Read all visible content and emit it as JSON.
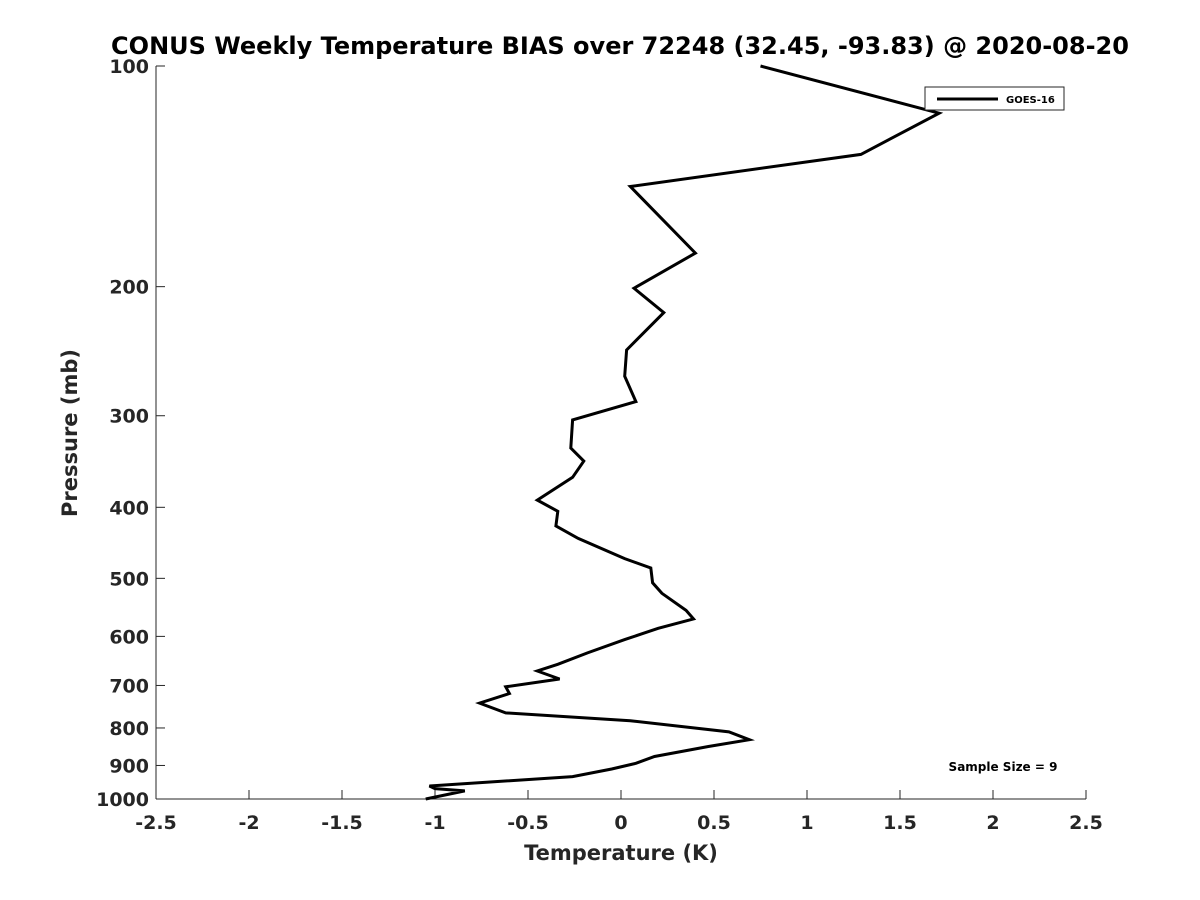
{
  "chart_data": {
    "type": "line",
    "title": "CONUS Weekly Temperature BIAS over 72248 (32.45, -93.83) @ 2020-08-20",
    "xlabel": "Temperature (K)",
    "ylabel": "Pressure (mb)",
    "xlim": [
      -2.5,
      2.5
    ],
    "ylim": [
      1000,
      100
    ],
    "y_scale": "log",
    "y_reversed": true,
    "x_ticks": [
      "-2.5",
      "-2",
      "-1.5",
      "-1",
      "-0.5",
      "0",
      "0.5",
      "1",
      "1.5",
      "2",
      "2.5"
    ],
    "x_tick_values": [
      -2.5,
      -2,
      -1.5,
      -1,
      -0.5,
      0,
      0.5,
      1,
      1.5,
      2,
      2.5
    ],
    "y_ticks": [
      "100",
      "200",
      "300",
      "400",
      "500",
      "600",
      "700",
      "800",
      "900",
      "1000"
    ],
    "y_tick_values": [
      100,
      200,
      300,
      400,
      500,
      600,
      700,
      800,
      900,
      1000
    ],
    "grid": false,
    "legend_position": "top-right",
    "annotation": "Sample Size = 9",
    "series": [
      {
        "name": "GOES-16",
        "color": "#000000",
        "points": [
          [
            0.75,
            100
          ],
          [
            1.71,
            116
          ],
          [
            1.29,
            132
          ],
          [
            0.05,
            146
          ],
          [
            0.4,
            180
          ],
          [
            0.07,
            201
          ],
          [
            0.23,
            217
          ],
          [
            0.03,
            244
          ],
          [
            0.02,
            265
          ],
          [
            0.08,
            287
          ],
          [
            -0.26,
            304
          ],
          [
            -0.27,
            332
          ],
          [
            -0.2,
            346
          ],
          [
            -0.26,
            364
          ],
          [
            -0.45,
            391
          ],
          [
            -0.34,
            405
          ],
          [
            -0.35,
            424
          ],
          [
            -0.23,
            441
          ],
          [
            0.02,
            470
          ],
          [
            0.16,
            484
          ],
          [
            0.17,
            507
          ],
          [
            0.22,
            524
          ],
          [
            0.35,
            553
          ],
          [
            0.39,
            568
          ],
          [
            0.2,
            585
          ],
          [
            0.02,
            606
          ],
          [
            -0.18,
            632
          ],
          [
            -0.34,
            655
          ],
          [
            -0.45,
            669
          ],
          [
            -0.33,
            686
          ],
          [
            -0.62,
            703
          ],
          [
            -0.6,
            718
          ],
          [
            -0.76,
            740
          ],
          [
            -0.62,
            763
          ],
          [
            0.05,
            782
          ],
          [
            0.58,
            810
          ],
          [
            0.69,
            830
          ],
          [
            0.47,
            848
          ],
          [
            0.18,
            875
          ],
          [
            0.08,
            894
          ],
          [
            -0.05,
            910
          ],
          [
            -0.26,
            932
          ],
          [
            -1.03,
            960
          ],
          [
            -1.0,
            968
          ],
          [
            -0.84,
            975
          ],
          [
            -1.05,
            1000
          ]
        ]
      }
    ]
  }
}
